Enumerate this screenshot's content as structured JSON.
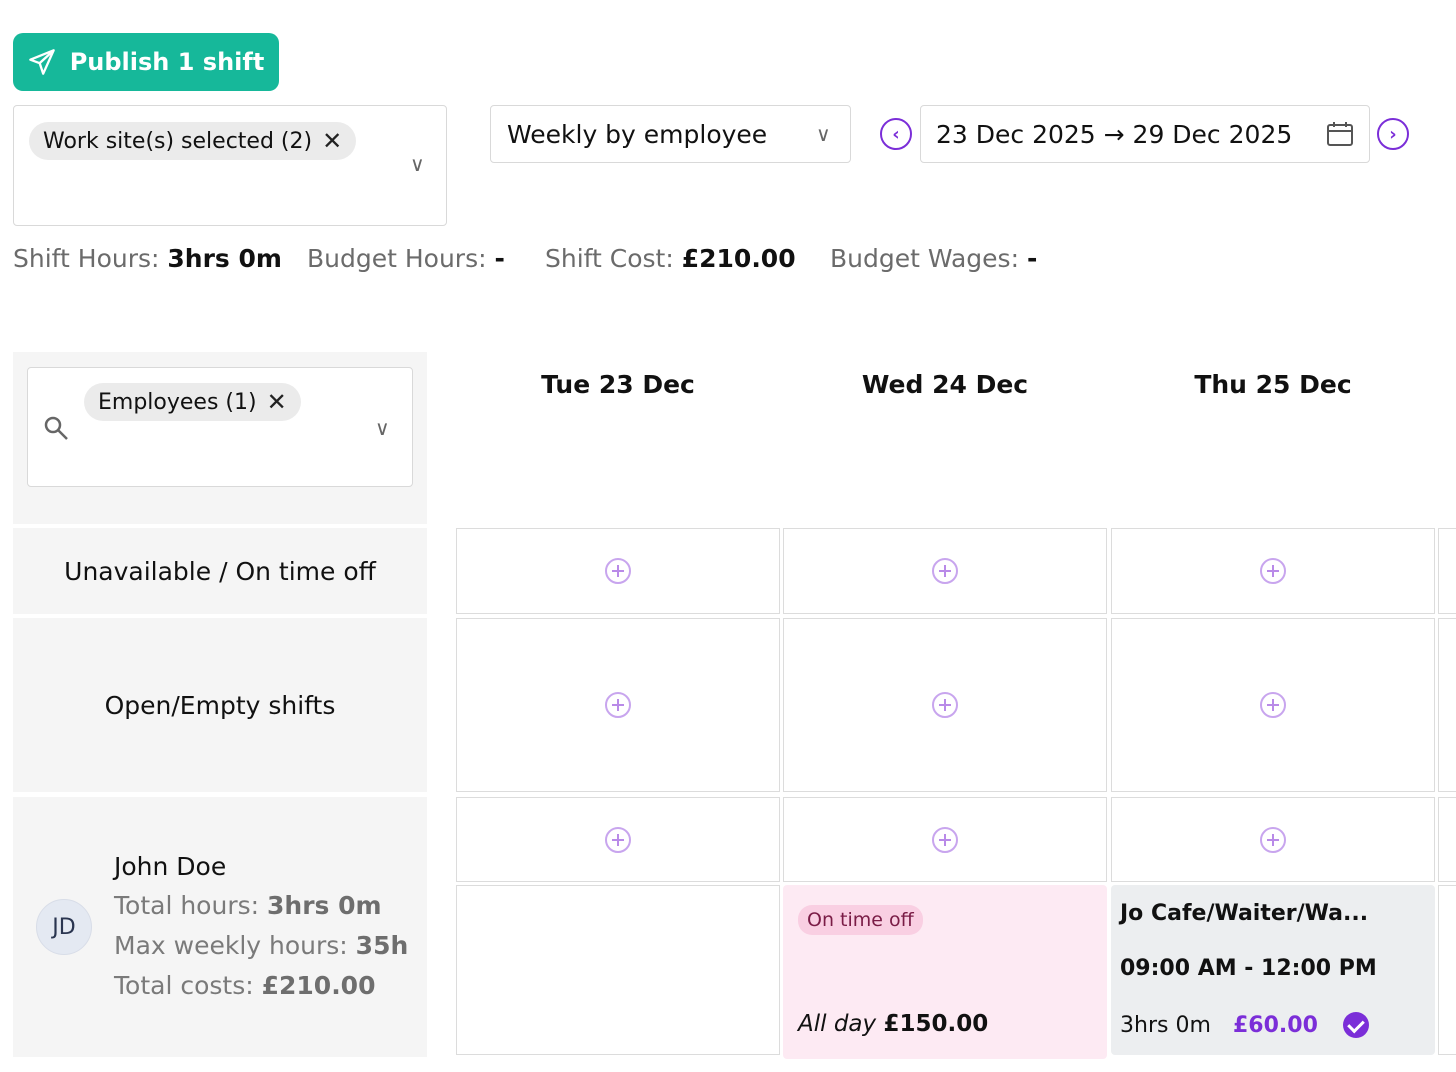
{
  "toolbar": {
    "publish_label": "Publish 1 shift"
  },
  "filters": {
    "site_chip": "Work site(s) selected (2)",
    "view_mode": "Weekly by employee",
    "date_range": "23 Dec 2025 → 29 Dec 2025",
    "employee_chip": "Employees (1)"
  },
  "summary": {
    "shift_hours_label": "Shift Hours:",
    "shift_hours_value": "3hrs 0m",
    "budget_hours_label": "Budget Hours:",
    "budget_hours_value": "-",
    "shift_cost_label": "Shift Cost:",
    "shift_cost_value": "£210.00",
    "budget_wages_label": "Budget Wages:",
    "budget_wages_value": "-"
  },
  "days": [
    "Tue 23 Dec",
    "Wed 24 Dec",
    "Thu 25 Dec"
  ],
  "rows": {
    "unavailable": "Unavailable / On time off",
    "open": "Open/Empty shifts"
  },
  "employee": {
    "initials": "JD",
    "name": "John Doe",
    "total_hours_label": "Total hours:",
    "total_hours_value": "3hrs 0m",
    "max_weekly_label": "Max weekly hours:",
    "max_weekly_value": "35h",
    "total_costs_label": "Total costs:",
    "total_costs_value": "£210.00"
  },
  "timeoff": {
    "badge": "On time off",
    "period": "All day",
    "cost": "£150.00"
  },
  "shift": {
    "title": "Jo Cafe/Waiter/Wa...",
    "time": "09:00 AM - 12:00 PM",
    "duration": "3hrs 0m",
    "cost": "£60.00"
  },
  "colors": {
    "accent": "#16b89a",
    "purple": "#7b2ed8",
    "timeoff_bg": "#fdeaf3"
  },
  "icons": {
    "publish": "paper-plane-icon",
    "calendar": "calendar-icon",
    "search": "search-icon",
    "add": "plus-circle-icon",
    "check": "check-circle-icon"
  }
}
